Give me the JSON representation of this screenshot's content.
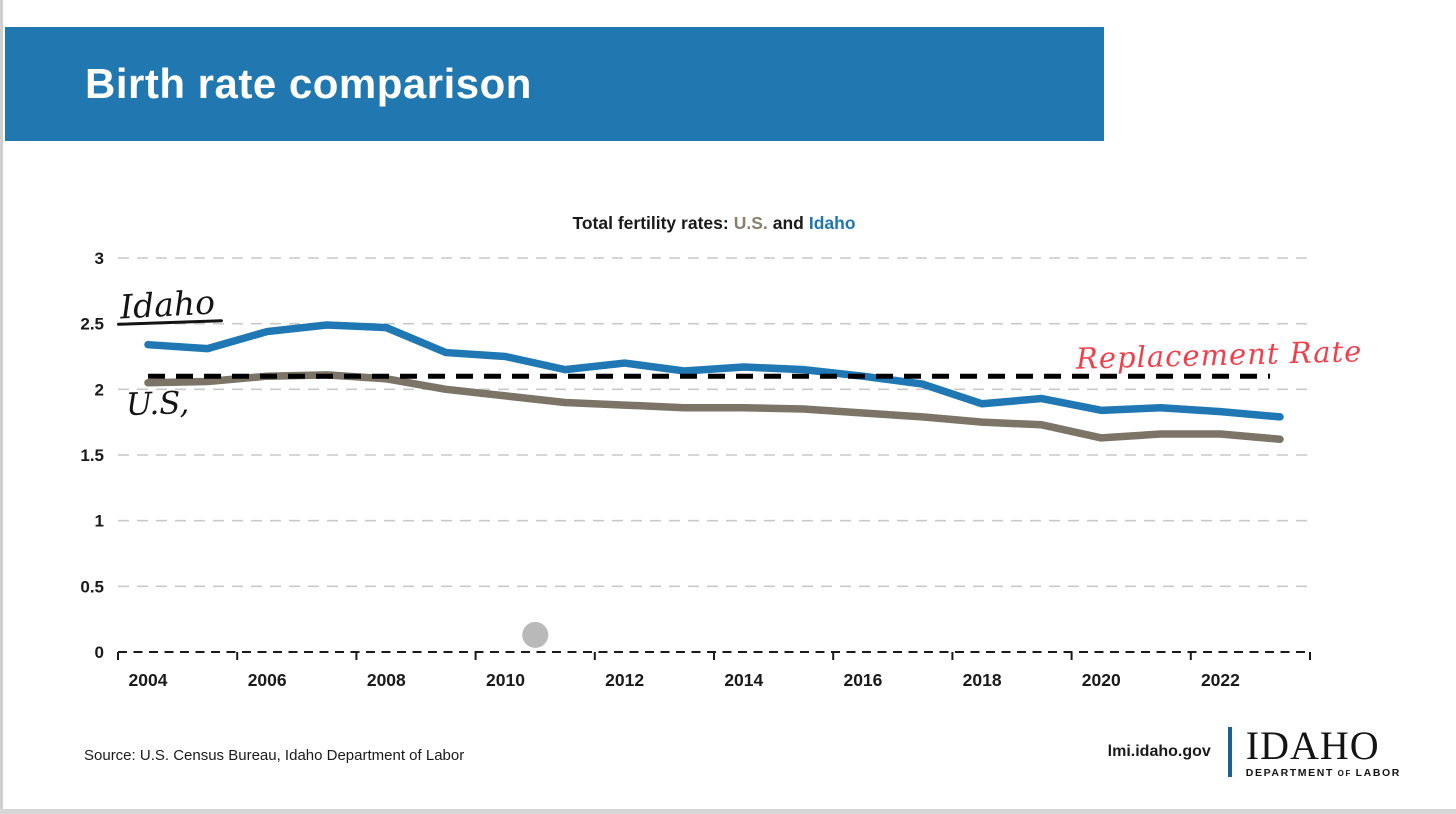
{
  "header": {
    "title": "Birth rate comparison"
  },
  "chart": {
    "title": {
      "prefix": "Total fertility rates:",
      "us": "U.S.",
      "and": "and",
      "idaho": "Idaho"
    }
  },
  "chart_data": {
    "type": "line",
    "title": "Total fertility rates: U.S. and Idaho",
    "x": [
      2004,
      2005,
      2006,
      2007,
      2008,
      2009,
      2010,
      2011,
      2012,
      2013,
      2014,
      2015,
      2016,
      2017,
      2018,
      2019,
      2020,
      2021,
      2022,
      2023
    ],
    "series": [
      {
        "name": "Idaho",
        "color": "#1f77b4",
        "values": [
          2.34,
          2.31,
          2.44,
          2.49,
          2.47,
          2.28,
          2.25,
          2.15,
          2.2,
          2.14,
          2.17,
          2.15,
          2.1,
          2.04,
          1.89,
          1.93,
          1.84,
          1.86,
          1.83,
          1.79
        ]
      },
      {
        "name": "U.S.",
        "color": "#7d7468",
        "values": [
          2.05,
          2.06,
          2.1,
          2.11,
          2.08,
          2.0,
          1.95,
          1.9,
          1.88,
          1.86,
          1.86,
          1.85,
          1.82,
          1.79,
          1.75,
          1.73,
          1.63,
          1.66,
          1.66,
          1.62
        ]
      }
    ],
    "reference_line": {
      "label": "Replacement Rate",
      "value": 2.1,
      "style": "dashed",
      "color": "#000000"
    },
    "ylim": [
      0,
      3
    ],
    "yticks": [
      0,
      0.5,
      1,
      1.5,
      2,
      2.5,
      3
    ],
    "xtick_years": [
      2004,
      2006,
      2008,
      2010,
      2012,
      2014,
      2016,
      2018,
      2020,
      2022
    ],
    "xtick_labels": [
      "2004",
      "2006",
      "2008",
      "2010",
      "2012",
      "2014",
      "2016",
      "2018",
      "2020",
      "2022"
    ],
    "grid": "horizontal-dashed-gray",
    "legend": "handwritten-inline-annotations",
    "stray_dot": {
      "x_year": 2010.5,
      "y_value": 0.13,
      "color": "#b9b9b9"
    }
  },
  "annotations": {
    "idaho_label": "Idaho",
    "us_label": "U.S,",
    "replacement_label": "Replacement Rate",
    "ink_black": "#141414",
    "ink_red": "#ef404c"
  },
  "footer": {
    "source": "Source: U.S. Census Bureau, Idaho Department of Labor",
    "site": "lmi.idaho.gov",
    "logo": {
      "name": "IDAHO",
      "dept_word1": "DEPARTMENT",
      "dept_of": "OF",
      "dept_word2": "LABOR"
    }
  },
  "colors": {
    "header_bar": "#2178b0",
    "idaho_line": "#1f77b4",
    "us_line": "#7d7468",
    "replacement_line": "#000000",
    "gridline": "#c9c9c9",
    "title_us_word": "#8c7d6d",
    "title_idaho_word": "#2076b4",
    "logo_divider": "#19618e"
  }
}
